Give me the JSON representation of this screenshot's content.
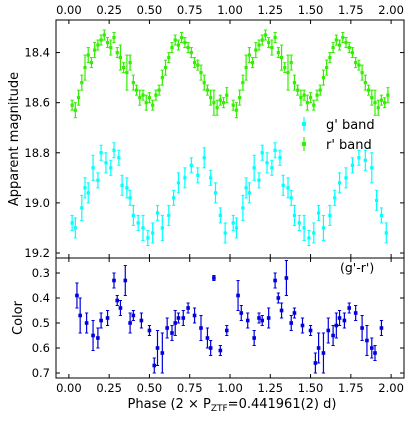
{
  "chart_data": [
    {
      "type": "scatter",
      "panel": "top",
      "ylabel": "Apparent magnitude",
      "ylim": [
        19.22,
        18.27
      ],
      "y_inverted": true,
      "xlim": [
        -0.08,
        2.08
      ],
      "xticks": [
        "0.00",
        "0.25",
        "0.50",
        "0.75",
        "1.00",
        "1.25",
        "1.50",
        "1.75",
        "2.00"
      ],
      "yticks": [
        "18.4",
        "18.6",
        "18.8",
        "19.0",
        "19.2"
      ],
      "ytick_values": [
        18.4,
        18.6,
        18.8,
        19.0,
        19.2
      ],
      "legend_position": "center-right",
      "series": [
        {
          "name": "g' band",
          "color": "#00ffff",
          "x": [
            0.02,
            0.04,
            0.08,
            0.1,
            0.12,
            0.15,
            0.18,
            0.2,
            0.23,
            0.26,
            0.28,
            0.31,
            0.33,
            0.36,
            0.38,
            0.4,
            0.43,
            0.46,
            0.49,
            0.52,
            0.55,
            0.58,
            0.62,
            0.65,
            0.68,
            0.72,
            0.76,
            0.8,
            0.84,
            0.88,
            0.91,
            0.94,
            0.97,
            1.02,
            1.04,
            1.08,
            1.1,
            1.12,
            1.15,
            1.18,
            1.2,
            1.23,
            1.26,
            1.28,
            1.31,
            1.33,
            1.36,
            1.38,
            1.4,
            1.43,
            1.46,
            1.49,
            1.52,
            1.55,
            1.58,
            1.62,
            1.65,
            1.68,
            1.72,
            1.76,
            1.8,
            1.84,
            1.88,
            1.91,
            1.94,
            1.97
          ],
          "y": [
            19.08,
            19.1,
            19.02,
            18.94,
            18.96,
            18.86,
            18.91,
            18.8,
            18.84,
            18.86,
            18.79,
            18.82,
            18.93,
            18.94,
            18.98,
            19.05,
            19.08,
            19.1,
            19.14,
            19.12,
            19.04,
            19.1,
            19.05,
            18.98,
            18.92,
            18.9,
            18.85,
            18.89,
            18.82,
            18.9,
            18.96,
            19.05,
            19.12,
            19.08,
            19.1,
            19.02,
            18.94,
            18.96,
            18.86,
            18.91,
            18.8,
            18.84,
            18.86,
            18.79,
            18.82,
            18.93,
            18.94,
            18.98,
            19.05,
            19.08,
            19.1,
            19.14,
            19.12,
            19.04,
            19.1,
            19.05,
            18.98,
            18.92,
            18.9,
            18.85,
            18.82,
            18.83,
            18.86,
            18.99,
            19.05,
            19.12
          ],
          "err": [
            0.03,
            0.04,
            0.05,
            0.04,
            0.04,
            0.05,
            0.03,
            0.03,
            0.04,
            0.03,
            0.03,
            0.03,
            0.04,
            0.04,
            0.03,
            0.04,
            0.03,
            0.05,
            0.03,
            0.04,
            0.03,
            0.05,
            0.04,
            0.03,
            0.04,
            0.04,
            0.03,
            0.03,
            0.04,
            0.03,
            0.04,
            0.03,
            0.04,
            0.03,
            0.04,
            0.05,
            0.04,
            0.04,
            0.05,
            0.03,
            0.03,
            0.04,
            0.03,
            0.03,
            0.03,
            0.04,
            0.04,
            0.03,
            0.04,
            0.03,
            0.05,
            0.03,
            0.04,
            0.03,
            0.05,
            0.04,
            0.03,
            0.04,
            0.04,
            0.03,
            0.03,
            0.04,
            0.06,
            0.04,
            0.03,
            0.04
          ]
        },
        {
          "name": "r' band",
          "color": "#33ee00",
          "x": [
            0.02,
            0.04,
            0.06,
            0.08,
            0.1,
            0.12,
            0.14,
            0.16,
            0.18,
            0.2,
            0.22,
            0.24,
            0.26,
            0.28,
            0.3,
            0.32,
            0.34,
            0.36,
            0.38,
            0.4,
            0.42,
            0.44,
            0.46,
            0.48,
            0.5,
            0.52,
            0.54,
            0.56,
            0.58,
            0.6,
            0.62,
            0.64,
            0.66,
            0.68,
            0.7,
            0.72,
            0.74,
            0.76,
            0.78,
            0.8,
            0.82,
            0.84,
            0.86,
            0.88,
            0.9,
            0.92,
            0.94,
            0.96,
            0.98,
            1.02,
            1.04,
            1.06,
            1.08,
            1.1,
            1.12,
            1.14,
            1.16,
            1.18,
            1.2,
            1.22,
            1.24,
            1.26,
            1.28,
            1.3,
            1.32,
            1.34,
            1.36,
            1.38,
            1.4,
            1.42,
            1.44,
            1.46,
            1.48,
            1.5,
            1.52,
            1.54,
            1.56,
            1.58,
            1.6,
            1.62,
            1.64,
            1.66,
            1.68,
            1.7,
            1.72,
            1.74,
            1.76,
            1.78,
            1.8,
            1.82,
            1.84,
            1.86,
            1.88,
            1.9,
            1.92,
            1.94,
            1.96,
            1.98
          ],
          "y": [
            18.61,
            18.63,
            18.58,
            18.52,
            18.46,
            18.41,
            18.44,
            18.39,
            18.37,
            18.35,
            18.33,
            18.36,
            18.38,
            18.34,
            18.4,
            18.42,
            18.46,
            18.48,
            18.44,
            18.52,
            18.55,
            18.58,
            18.57,
            18.6,
            18.58,
            18.61,
            18.57,
            18.55,
            18.5,
            18.46,
            18.42,
            18.38,
            18.35,
            18.37,
            18.34,
            18.36,
            18.38,
            18.4,
            18.44,
            18.45,
            18.48,
            18.52,
            18.55,
            18.58,
            18.6,
            18.62,
            18.59,
            18.6,
            18.57,
            18.61,
            18.63,
            18.58,
            18.52,
            18.46,
            18.41,
            18.44,
            18.39,
            18.37,
            18.35,
            18.33,
            18.36,
            18.38,
            18.34,
            18.4,
            18.42,
            18.46,
            18.48,
            18.44,
            18.52,
            18.55,
            18.58,
            18.57,
            18.6,
            18.58,
            18.61,
            18.57,
            18.55,
            18.5,
            18.46,
            18.42,
            18.38,
            18.35,
            18.37,
            18.34,
            18.36,
            18.38,
            18.4,
            18.44,
            18.45,
            18.48,
            18.52,
            18.55,
            18.58,
            18.6,
            18.62,
            18.59,
            18.6,
            18.57
          ],
          "err": [
            0.02,
            0.03,
            0.03,
            0.03,
            0.05,
            0.03,
            0.02,
            0.03,
            0.02,
            0.02,
            0.02,
            0.02,
            0.03,
            0.02,
            0.02,
            0.05,
            0.02,
            0.07,
            0.03,
            0.03,
            0.02,
            0.03,
            0.02,
            0.03,
            0.02,
            0.02,
            0.02,
            0.02,
            0.03,
            0.03,
            0.02,
            0.02,
            0.02,
            0.02,
            0.02,
            0.02,
            0.02,
            0.02,
            0.02,
            0.02,
            0.03,
            0.03,
            0.02,
            0.03,
            0.05,
            0.03,
            0.02,
            0.02,
            0.03,
            0.02,
            0.03,
            0.03,
            0.03,
            0.05,
            0.03,
            0.02,
            0.03,
            0.02,
            0.02,
            0.02,
            0.02,
            0.03,
            0.02,
            0.02,
            0.05,
            0.02,
            0.07,
            0.03,
            0.03,
            0.02,
            0.03,
            0.02,
            0.03,
            0.02,
            0.02,
            0.02,
            0.02,
            0.03,
            0.03,
            0.02,
            0.02,
            0.02,
            0.02,
            0.02,
            0.02,
            0.02,
            0.02,
            0.02,
            0.02,
            0.03,
            0.03,
            0.02,
            0.03,
            0.05,
            0.03,
            0.02,
            0.02,
            0.03
          ]
        }
      ]
    },
    {
      "type": "scatter",
      "panel": "bottom",
      "ylabel": "Color",
      "xlabel": "Phase (2 × P",
      "xlabel_sub": "ZTF",
      "xlabel_tail": "=0.441961(2) d)",
      "annotation": "(g'-r')",
      "ylim": [
        0.72,
        0.24
      ],
      "y_inverted": true,
      "xlim": [
        -0.08,
        2.08
      ],
      "xticks": [
        "0.00",
        "0.25",
        "0.50",
        "0.75",
        "1.00",
        "1.25",
        "1.50",
        "1.75",
        "2.00"
      ],
      "yticks": [
        "0.3",
        "0.4",
        "0.5",
        "0.6",
        "0.7"
      ],
      "ytick_values": [
        0.3,
        0.4,
        0.5,
        0.6,
        0.7
      ],
      "series": [
        {
          "name": "(g'-r')",
          "color": "#0000dd",
          "x": [
            0.05,
            0.07,
            0.11,
            0.15,
            0.18,
            0.2,
            0.24,
            0.28,
            0.3,
            0.32,
            0.35,
            0.38,
            0.4,
            0.45,
            0.5,
            0.53,
            0.55,
            0.58,
            0.61,
            0.64,
            0.66,
            0.68,
            0.71,
            0.74,
            0.78,
            0.82,
            0.86,
            0.88,
            0.9,
            0.94,
            0.98,
            1.05,
            1.07,
            1.11,
            1.15,
            1.18,
            1.2,
            1.24,
            1.28,
            1.3,
            1.32,
            1.35,
            1.38,
            1.4,
            1.45,
            1.5,
            1.53,
            1.55,
            1.58,
            1.61,
            1.64,
            1.66,
            1.68,
            1.71,
            1.74,
            1.78,
            1.82,
            1.85,
            1.88,
            1.9,
            1.94
          ],
          "y": [
            0.39,
            0.47,
            0.5,
            0.55,
            0.56,
            0.49,
            0.48,
            0.33,
            0.41,
            0.44,
            0.33,
            0.5,
            0.47,
            0.49,
            0.53,
            0.67,
            0.6,
            0.62,
            0.52,
            0.54,
            0.5,
            0.48,
            0.48,
            0.44,
            0.47,
            0.52,
            0.56,
            0.6,
            0.32,
            0.61,
            0.53,
            0.39,
            0.46,
            0.49,
            0.56,
            0.48,
            0.49,
            0.48,
            0.33,
            0.4,
            0.45,
            0.32,
            0.5,
            0.46,
            0.51,
            0.53,
            0.66,
            0.6,
            0.62,
            0.53,
            0.55,
            0.51,
            0.48,
            0.49,
            0.44,
            0.46,
            0.52,
            0.57,
            0.6,
            0.62,
            0.52
          ],
          "err": [
            0.05,
            0.07,
            0.04,
            0.06,
            0.04,
            0.03,
            0.03,
            0.03,
            0.02,
            0.03,
            0.06,
            0.04,
            0.02,
            0.03,
            0.02,
            0.03,
            0.07,
            0.08,
            0.04,
            0.03,
            0.05,
            0.02,
            0.03,
            0.02,
            0.03,
            0.05,
            0.04,
            0.03,
            0.01,
            0.02,
            0.02,
            0.06,
            0.03,
            0.03,
            0.03,
            0.02,
            0.02,
            0.04,
            0.03,
            0.02,
            0.03,
            0.07,
            0.03,
            0.02,
            0.03,
            0.02,
            0.04,
            0.06,
            0.08,
            0.05,
            0.04,
            0.05,
            0.03,
            0.03,
            0.02,
            0.03,
            0.05,
            0.06,
            0.04,
            0.03,
            0.03
          ]
        }
      ]
    }
  ]
}
